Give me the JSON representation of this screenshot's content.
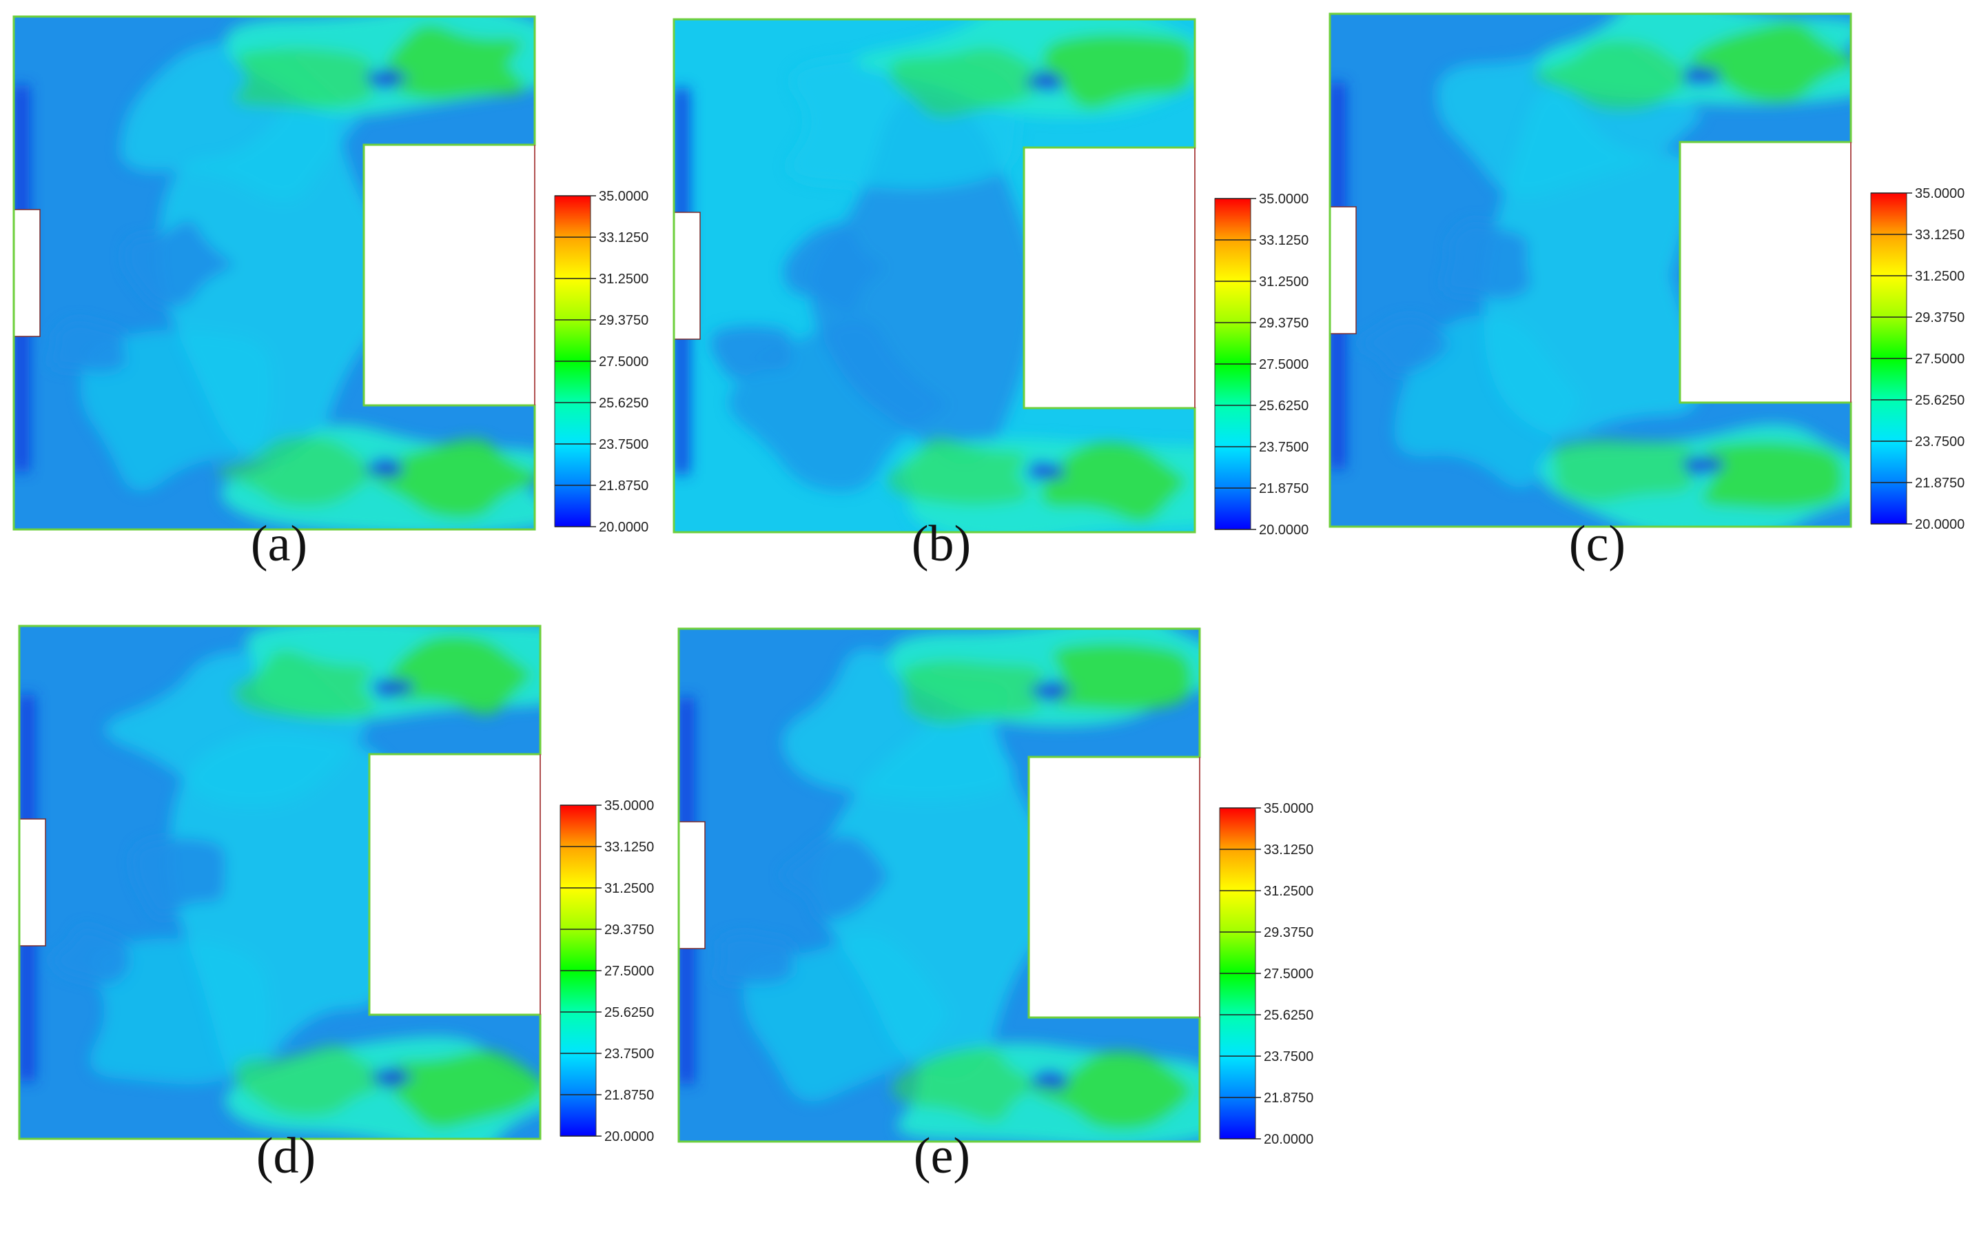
{
  "chart_data": [
    {
      "type": "heatmap",
      "panel_label": "a",
      "colorbar": {
        "min": 20.0,
        "max": 35.0,
        "ticks": [
          "35.0000",
          "33.1250",
          "31.2500",
          "29.3750",
          "27.5000",
          "25.6250",
          "23.7500",
          "21.8750",
          "20.0000"
        ]
      },
      "dominant_levels": [
        21.875,
        23.75,
        25.625,
        27.5
      ]
    },
    {
      "type": "heatmap",
      "panel_label": "b",
      "colorbar": {
        "min": 20.0,
        "max": 35.0,
        "ticks": [
          "35.0000",
          "33.1250",
          "31.2500",
          "29.3750",
          "27.5000",
          "25.6250",
          "23.7500",
          "21.8750",
          "20.0000"
        ]
      },
      "dominant_levels": [
        21.875,
        23.75,
        25.625,
        27.5
      ]
    },
    {
      "type": "heatmap",
      "panel_label": "c",
      "colorbar": {
        "min": 20.0,
        "max": 35.0,
        "ticks": [
          "35.0000",
          "33.1250",
          "31.2500",
          "29.3750",
          "27.5000",
          "25.6250",
          "23.7500",
          "21.8750",
          "20.0000"
        ]
      },
      "dominant_levels": [
        21.875,
        23.75,
        25.625,
        27.5
      ]
    },
    {
      "type": "heatmap",
      "panel_label": "d",
      "colorbar": {
        "min": 20.0,
        "max": 35.0,
        "ticks": [
          "35.0000",
          "33.1250",
          "31.2500",
          "29.3750",
          "27.5000",
          "25.6250",
          "23.7500",
          "21.8750",
          "20.0000"
        ]
      },
      "dominant_levels": [
        21.875,
        23.75,
        25.625,
        27.5
      ]
    },
    {
      "type": "heatmap",
      "panel_label": "e",
      "colorbar": {
        "min": 20.0,
        "max": 35.0,
        "ticks": [
          "35.0000",
          "33.1250",
          "31.2500",
          "29.3750",
          "27.5000",
          "25.6250",
          "23.7500",
          "21.8750",
          "20.0000"
        ]
      },
      "dominant_levels": [
        21.875,
        23.75,
        25.625,
        27.5
      ]
    }
  ],
  "captions": [
    "(a)",
    "(b)",
    "(c)",
    "(d)",
    "(e)"
  ],
  "colors": {
    "base": "#1e90e8",
    "light": "#15c9ef",
    "cyan": "#22e6d2",
    "green": "#2fdc45",
    "deep": "#1238e0",
    "border": "#6ecf3c",
    "colormap": [
      "#0000ff",
      "#0080ff",
      "#00e5ff",
      "#00ffb0",
      "#00ff00",
      "#a0ff00",
      "#ffff00",
      "#ffa500",
      "#ff0000"
    ]
  }
}
